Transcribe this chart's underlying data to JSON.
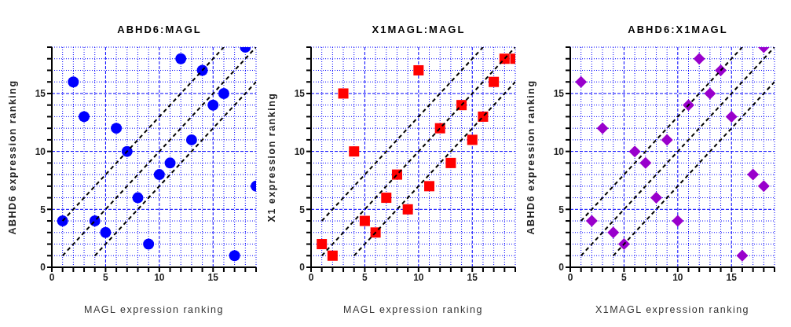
{
  "chart_data": [
    {
      "type": "scatter",
      "title": "ABHD6:MAGL",
      "xlabel": "MAGL expression ranking",
      "ylabel": "ABHD6 expression ranking",
      "xlim": [
        0,
        19
      ],
      "ylim": [
        0,
        19
      ],
      "xticks": [
        0,
        {
          "value": 1,
          "label": null
        },
        {
          "value": 2,
          "label": null
        },
        {
          "value": 3,
          "label": null
        },
        {
          "value": 4,
          "label": null
        },
        5,
        {
          "value": 6,
          "label": null
        },
        {
          "value": 7,
          "label": null
        },
        {
          "value": 8,
          "label": null
        },
        {
          "value": 9,
          "label": null
        },
        10,
        {
          "value": 11,
          "label": null
        },
        {
          "value": 12,
          "label": null
        },
        {
          "value": 13,
          "label": null
        },
        {
          "value": 14,
          "label": null
        },
        15,
        {
          "value": 16,
          "label": null
        },
        {
          "value": 17,
          "label": null
        },
        {
          "value": 18,
          "label": null
        },
        {
          "value": 19,
          "label": null
        }
      ],
      "yticks": [
        0,
        {
          "value": 1,
          "label": null
        },
        {
          "value": 2,
          "label": null
        },
        {
          "value": 3,
          "label": null
        },
        {
          "value": 4,
          "label": null
        },
        5,
        {
          "value": 6,
          "label": null
        },
        {
          "value": 7,
          "label": null
        },
        {
          "value": 8,
          "label": null
        },
        {
          "value": 9,
          "label": null
        },
        10,
        {
          "value": 11,
          "label": null
        },
        {
          "value": 12,
          "label": null
        },
        {
          "value": 13,
          "label": null
        },
        {
          "value": 14,
          "label": null
        },
        15,
        {
          "value": 16,
          "label": null
        },
        {
          "value": 17,
          "label": null
        },
        {
          "value": 18,
          "label": null
        },
        {
          "value": 19,
          "label": null
        }
      ],
      "grid": true,
      "legend": false,
      "series": [
        {
          "type": "scatter",
          "marker": "circle",
          "color": "#0000ff",
          "x": [
            1,
            2,
            3,
            4,
            5,
            6,
            7,
            8,
            9,
            10,
            11,
            12,
            13,
            14,
            15,
            16,
            17,
            18,
            19
          ],
          "values": [
            4,
            16,
            13,
            4,
            3,
            12,
            10,
            6,
            2,
            8,
            9,
            18,
            11,
            17,
            14,
            15,
            1,
            19,
            7
          ]
        },
        {
          "type": "line",
          "marker": "none",
          "line_style": "dashed",
          "color": "#000000",
          "x": [
            1,
            16
          ],
          "values": [
            4,
            19
          ]
        },
        {
          "type": "line",
          "marker": "none",
          "line_style": "dashed",
          "color": "#000000",
          "x": [
            1,
            19
          ],
          "values": [
            1,
            19
          ]
        },
        {
          "type": "line",
          "marker": "none",
          "line_style": "dashed",
          "color": "#000000",
          "x": [
            4,
            19
          ],
          "values": [
            1,
            16
          ]
        }
      ]
    },
    {
      "type": "scatter",
      "title": "X1MAGL:MAGL",
      "xlabel": "MAGL expression ranking",
      "ylabel": "X1 expression ranking",
      "xlim": [
        0,
        19
      ],
      "ylim": [
        0,
        19
      ],
      "xticks": [
        0,
        {
          "value": 1,
          "label": null
        },
        {
          "value": 2,
          "label": null
        },
        {
          "value": 3,
          "label": null
        },
        {
          "value": 4,
          "label": null
        },
        5,
        {
          "value": 6,
          "label": null
        },
        {
          "value": 7,
          "label": null
        },
        {
          "value": 8,
          "label": null
        },
        {
          "value": 9,
          "label": null
        },
        10,
        {
          "value": 11,
          "label": null
        },
        {
          "value": 12,
          "label": null
        },
        {
          "value": 13,
          "label": null
        },
        {
          "value": 14,
          "label": null
        },
        15,
        {
          "value": 16,
          "label": null
        },
        {
          "value": 17,
          "label": null
        },
        {
          "value": 18,
          "label": null
        },
        {
          "value": 19,
          "label": null
        }
      ],
      "yticks": [
        0,
        {
          "value": 1,
          "label": null
        },
        {
          "value": 2,
          "label": null
        },
        {
          "value": 3,
          "label": null
        },
        {
          "value": 4,
          "label": null
        },
        5,
        {
          "value": 6,
          "label": null
        },
        {
          "value": 7,
          "label": null
        },
        {
          "value": 8,
          "label": null
        },
        {
          "value": 9,
          "label": null
        },
        10,
        {
          "value": 11,
          "label": null
        },
        {
          "value": 12,
          "label": null
        },
        {
          "value": 13,
          "label": null
        },
        {
          "value": 14,
          "label": null
        },
        15,
        {
          "value": 16,
          "label": null
        },
        {
          "value": 17,
          "label": null
        },
        {
          "value": 18,
          "label": null
        },
        {
          "value": 19,
          "label": null
        }
      ],
      "grid": true,
      "legend": false,
      "series": [
        {
          "type": "scatter",
          "marker": "square",
          "color": "#ff0000",
          "x": [
            1,
            2,
            3,
            4,
            5,
            6,
            7,
            8,
            9,
            10,
            11,
            12,
            13,
            14,
            15,
            16,
            17,
            18,
            19
          ],
          "values": [
            2,
            1,
            15,
            10,
            4,
            3,
            6,
            8,
            5,
            17,
            7,
            12,
            9,
            14,
            11,
            13,
            16,
            18,
            18
          ]
        },
        {
          "type": "line",
          "marker": "none",
          "line_style": "dashed",
          "color": "#000000",
          "x": [
            1,
            16
          ],
          "values": [
            4,
            19
          ]
        },
        {
          "type": "line",
          "marker": "none",
          "line_style": "dashed",
          "color": "#000000",
          "x": [
            1,
            19
          ],
          "values": [
            1,
            19
          ]
        },
        {
          "type": "line",
          "marker": "none",
          "line_style": "dashed",
          "color": "#000000",
          "x": [
            4,
            19
          ],
          "values": [
            1,
            16
          ]
        }
      ]
    },
    {
      "type": "scatter",
      "title": "ABHD6:X1MAGL",
      "xlabel": "X1MAGL expression ranking",
      "ylabel": "ABHD6 expression ranking",
      "xlim": [
        0,
        19
      ],
      "ylim": [
        0,
        19
      ],
      "xticks": [
        0,
        {
          "value": 1,
          "label": null
        },
        {
          "value": 2,
          "label": null
        },
        {
          "value": 3,
          "label": null
        },
        {
          "value": 4,
          "label": null
        },
        5,
        {
          "value": 6,
          "label": null
        },
        {
          "value": 7,
          "label": null
        },
        {
          "value": 8,
          "label": null
        },
        {
          "value": 9,
          "label": null
        },
        10,
        {
          "value": 11,
          "label": null
        },
        {
          "value": 12,
          "label": null
        },
        {
          "value": 13,
          "label": null
        },
        {
          "value": 14,
          "label": null
        },
        15,
        {
          "value": 16,
          "label": null
        },
        {
          "value": 17,
          "label": null
        },
        {
          "value": 18,
          "label": null
        },
        {
          "value": 19,
          "label": null
        }
      ],
      "yticks": [
        0,
        {
          "value": 1,
          "label": null
        },
        {
          "value": 2,
          "label": null
        },
        {
          "value": 3,
          "label": null
        },
        {
          "value": 4,
          "label": null
        },
        5,
        {
          "value": 6,
          "label": null
        },
        {
          "value": 7,
          "label": null
        },
        {
          "value": 8,
          "label": null
        },
        {
          "value": 9,
          "label": null
        },
        10,
        {
          "value": 11,
          "label": null
        },
        {
          "value": 12,
          "label": null
        },
        {
          "value": 13,
          "label": null
        },
        {
          "value": 14,
          "label": null
        },
        15,
        {
          "value": 16,
          "label": null
        },
        {
          "value": 17,
          "label": null
        },
        {
          "value": 18,
          "label": null
        },
        {
          "value": 19,
          "label": null
        }
      ],
      "grid": true,
      "legend": false,
      "series": [
        {
          "type": "scatter",
          "marker": "diamond",
          "color": "#9900cc",
          "x": [
            1,
            2,
            3,
            4,
            5,
            6,
            7,
            8,
            9,
            10,
            11,
            12,
            13,
            14,
            15,
            16,
            17,
            18,
            18
          ],
          "values": [
            16,
            4,
            12,
            3,
            2,
            10,
            9,
            6,
            11,
            4,
            14,
            18,
            15,
            17,
            13,
            1,
            8,
            7,
            19
          ]
        },
        {
          "type": "line",
          "marker": "none",
          "line_style": "dashed",
          "color": "#000000",
          "x": [
            1,
            16
          ],
          "values": [
            4,
            19
          ]
        },
        {
          "type": "line",
          "marker": "none",
          "line_style": "dashed",
          "color": "#000000",
          "x": [
            1,
            19
          ],
          "values": [
            1,
            19
          ]
        },
        {
          "type": "line",
          "marker": "none",
          "line_style": "dashed",
          "color": "#000000",
          "x": [
            4,
            19
          ],
          "values": [
            1,
            16
          ]
        }
      ]
    }
  ]
}
